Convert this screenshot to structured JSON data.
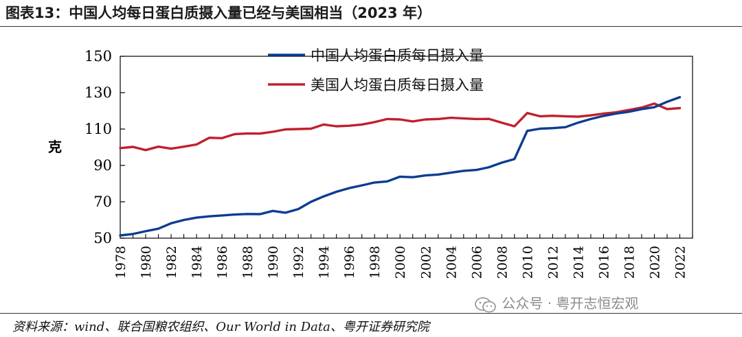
{
  "header": {
    "figure_title": "图表13：中国人均每日蛋白质摄入量已经与美国相当（2023 年）"
  },
  "footer": {
    "source": "资料来源：wind、联合国粮农组织、Our World in Data、粤开证券研究院",
    "watermark": "公众号 · 粤开志恒宏观",
    "watermark_icon": "wechat-icon"
  },
  "chart_data": {
    "type": "line",
    "title": "",
    "xlabel": "",
    "ylabel": "克",
    "ylim": [
      50,
      150
    ],
    "yticks": [
      50,
      70,
      90,
      110,
      130,
      150
    ],
    "xlim": [
      1978,
      2023
    ],
    "xticks": [
      "1978",
      "1980",
      "1982",
      "1984",
      "1986",
      "1988",
      "1990",
      "1992",
      "1994",
      "1996",
      "1998",
      "2000",
      "2002",
      "2004",
      "2006",
      "2008",
      "2010",
      "2012",
      "2014",
      "2016",
      "2018",
      "2020",
      "2022"
    ],
    "grid": false,
    "legend_position": "top-center",
    "x": [
      1978,
      1979,
      1980,
      1981,
      1982,
      1983,
      1984,
      1985,
      1986,
      1987,
      1988,
      1989,
      1990,
      1991,
      1992,
      1993,
      1994,
      1995,
      1996,
      1997,
      1998,
      1999,
      2000,
      2001,
      2002,
      2003,
      2004,
      2005,
      2006,
      2007,
      2008,
      2009,
      2010,
      2011,
      2012,
      2013,
      2014,
      2015,
      2016,
      2017,
      2018,
      2019,
      2020,
      2021,
      2022
    ],
    "series": [
      {
        "name": "中国人均蛋白质每日摄入量",
        "color": "#0b3d91",
        "values": [
          51.5,
          52.3,
          53.8,
          55.2,
          58.2,
          60.0,
          61.3,
          62.0,
          62.5,
          63.0,
          63.3,
          63.2,
          65.0,
          64.0,
          66.0,
          70.0,
          73.0,
          75.5,
          77.5,
          79.0,
          80.6,
          81.2,
          83.8,
          83.5,
          84.5,
          85.0,
          86.0,
          87.0,
          87.5,
          89.0,
          91.5,
          93.5,
          109.0,
          110.2,
          110.5,
          111.0,
          113.5,
          115.5,
          117.2,
          118.5,
          119.5,
          121.0,
          122.0,
          125.0,
          127.5
        ]
      },
      {
        "name": "美国人均蛋白质每日摄入量",
        "color": "#c0202f",
        "values": [
          99.5,
          100.2,
          98.4,
          100.3,
          99.2,
          100.3,
          101.5,
          105.2,
          105.0,
          107.2,
          107.6,
          107.5,
          108.5,
          109.8,
          110.0,
          110.2,
          112.5,
          111.5,
          111.8,
          112.5,
          113.8,
          115.5,
          115.3,
          114.2,
          115.3,
          115.5,
          116.2,
          115.8,
          115.5,
          115.6,
          113.5,
          111.5,
          118.8,
          117.0,
          117.3,
          117.0,
          116.8,
          117.5,
          118.5,
          119.2,
          120.5,
          121.8,
          124.0,
          121.0,
          121.5
        ]
      }
    ]
  }
}
